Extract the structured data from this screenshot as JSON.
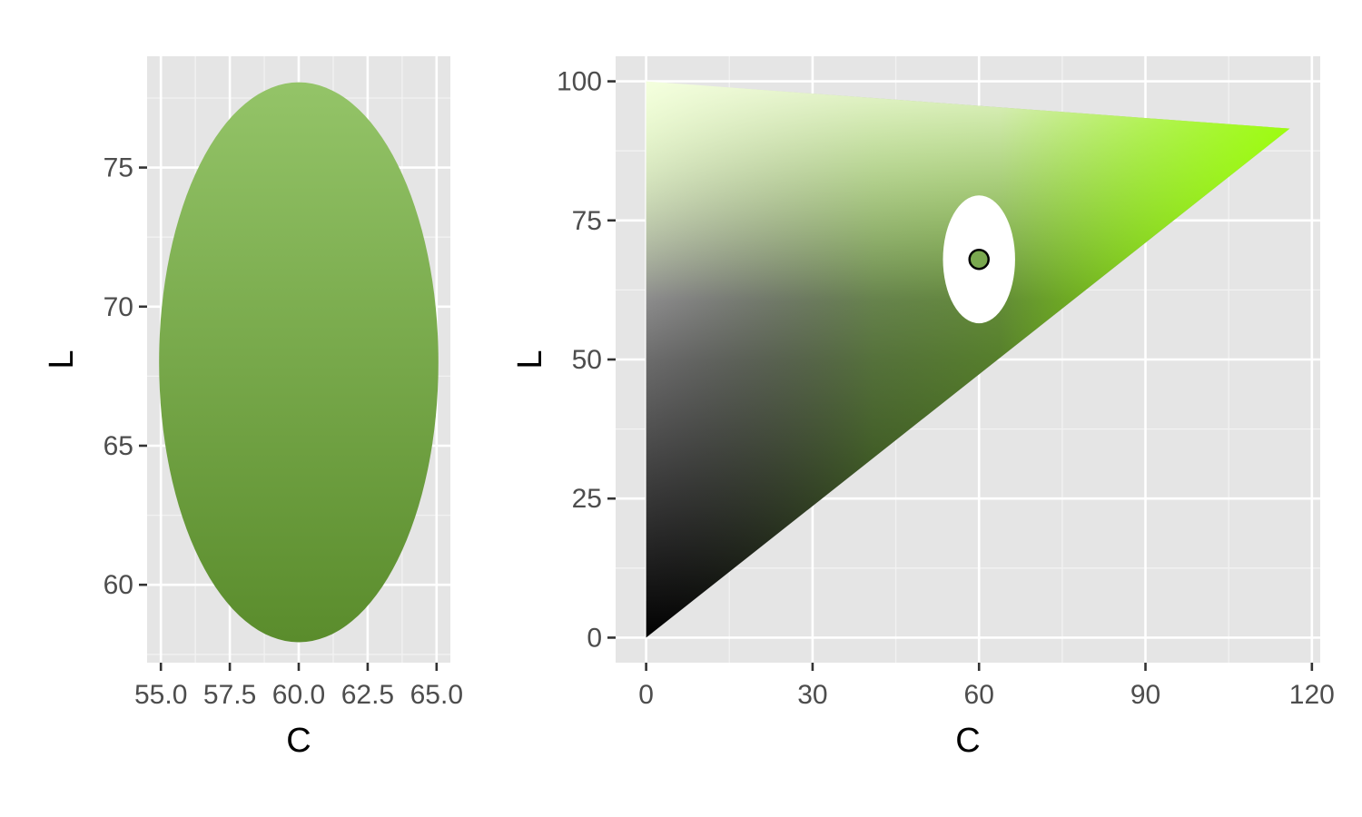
{
  "chart_data": [
    {
      "type": "scatter",
      "xlabel": "C",
      "ylabel": "L",
      "xlim": [
        54.5,
        65.5
      ],
      "ylim": [
        57.2,
        79.0
      ],
      "x_ticks": [
        55.0,
        57.5,
        60.0,
        62.5,
        65.0
      ],
      "x_tick_labels": [
        "55.0",
        "57.5",
        "60.0",
        "62.5",
        "65.0"
      ],
      "y_ticks": [
        60,
        65,
        70,
        75
      ],
      "y_tick_labels": [
        "60",
        "65",
        "70",
        "75"
      ],
      "grid": true,
      "series": [
        {
          "center": {
            "C": 60,
            "L": 68
          },
          "radius_C": 5,
          "radius_L": 10,
          "color_top": "#94c468",
          "color_bottom": "#5a8c2c"
        }
      ]
    },
    {
      "type": "scatter",
      "xlabel": "C",
      "ylabel": "L",
      "xlim": [
        -5.5,
        121.5
      ],
      "ylim": [
        -4.5,
        104.5
      ],
      "x_ticks": [
        0,
        30,
        60,
        90,
        120
      ],
      "x_tick_labels": [
        "0",
        "30",
        "60",
        "90",
        "120"
      ],
      "y_ticks": [
        0,
        25,
        50,
        75,
        100
      ],
      "y_tick_labels": [
        "0",
        "25",
        "50",
        "75",
        "100"
      ],
      "grid": true,
      "gamut": {
        "vertices": [
          {
            "C": 0,
            "L": 0
          },
          {
            "C": 0,
            "L": 100
          },
          {
            "C": 116,
            "L": 91.5
          }
        ],
        "colors": {
          "black": "#000000",
          "white": "#ffffff",
          "cusp": "#99ff00",
          "mid_green": "#4a8f00"
        }
      },
      "series": [
        {
          "center": {
            "C": 60,
            "L": 68
          },
          "radius_C": 6.5,
          "radius_L": 11.5,
          "color": "#ffffff"
        },
        {
          "point": {
            "C": 60,
            "L": 68
          },
          "color": "#7aa84f"
        }
      ]
    }
  ]
}
